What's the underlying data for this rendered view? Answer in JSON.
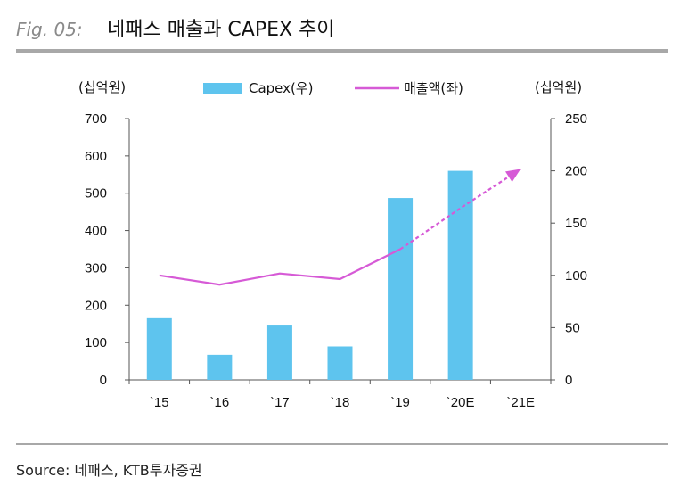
{
  "header": {
    "fig_label": "Fig. 05:",
    "title": "네패스 매출과 CAPEX 추이"
  },
  "source": "Source: 네패스, KTB투자증권",
  "colors": {
    "bar": "#5ec4ee",
    "line": "#d65ad6",
    "rule": "#a8a8a8",
    "axis": "#555555"
  },
  "chart_data": {
    "type": "bar",
    "categories": [
      "`15",
      "`16",
      "`17",
      "`18",
      "`19",
      "`20E",
      "`21E"
    ],
    "y_left_label": "(십억원)",
    "y_right_label": "(십억원)",
    "y_left_ticks": [
      "0",
      "100",
      "200",
      "300",
      "400",
      "500",
      "600",
      "700"
    ],
    "y_right_ticks": [
      "0",
      "50",
      "100",
      "150",
      "200",
      "250"
    ],
    "ylim_left": [
      0,
      700
    ],
    "ylim_right": [
      0,
      250
    ],
    "legend_position": "top",
    "series": [
      {
        "name": "Capex(우)",
        "type": "bar",
        "axis": "right",
        "values": [
          59,
          24,
          52,
          32,
          174,
          200,
          null
        ]
      },
      {
        "name": "매출액(좌)",
        "type": "line",
        "axis": "left",
        "values": [
          280,
          255,
          285,
          270,
          350,
          460,
          565
        ],
        "dashed_from_index": 4
      }
    ]
  }
}
